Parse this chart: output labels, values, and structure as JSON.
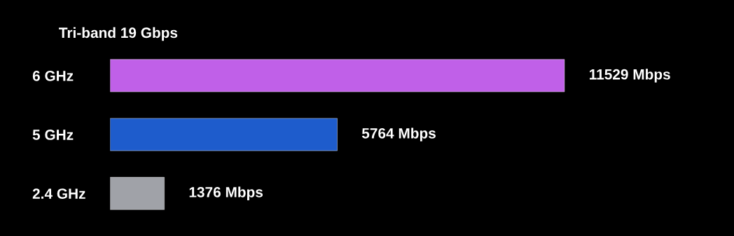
{
  "chart_data": {
    "type": "bar",
    "orientation": "horizontal",
    "title": "Tri-band 19 Gbps",
    "categories": [
      "6 GHz",
      "5 GHz",
      "2.4 GHz"
    ],
    "values": [
      11529,
      5764,
      1376
    ],
    "colors": [
      "#c060e8",
      "#1e5ccc",
      "#a0a2a8"
    ],
    "value_labels": [
      "11529 Mbps",
      "5764 Mbps",
      "1376 Mbps"
    ],
    "tick_labels": "y",
    "grid": false,
    "legend": false
  }
}
